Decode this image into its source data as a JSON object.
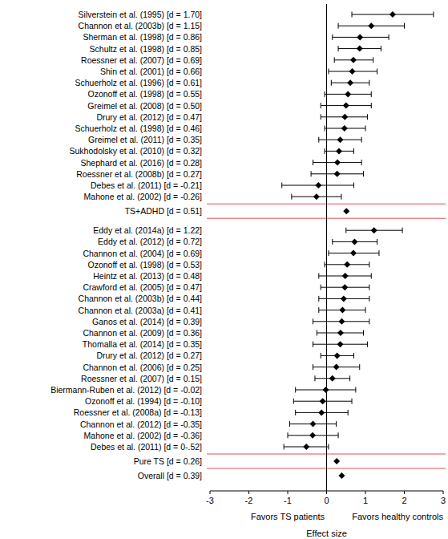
{
  "chart_data": {
    "type": "forest",
    "x_label": "Effect size",
    "annotations": [
      "Favors TS patients",
      "Favors healthy controls"
    ],
    "xlim": [
      -3,
      3
    ],
    "xticks": [
      -3,
      -2,
      -1,
      0,
      1,
      2,
      3
    ],
    "color": "#000000",
    "marker": "diamond",
    "categories": [
      "Silverstein et al. (1995) [d = 1.70]",
      "Channon et al. (2003b) [d = 1.15]",
      "Sherman et al. (1998) [d = 0.86]",
      "Schultz et al. (1998) [d = 0.85]",
      "Roessner et al. (2007) [d = 0.69]",
      "Shin et al. (2001) [d = 0.66]",
      "Schuerholz et al. (1996) [d = 0.61]",
      "Ozonoff et al. (1998) [d = 0.55]",
      "Greimel et al. (2008) [d = 0.50]",
      "Drury et al. (2012) [d = 0.47]",
      "Schuerholz et al. (1998) [d = 0.46]",
      "Greimel et al. (2011) [d = 0.35]",
      "Sukhodolsky et al. (2010) [d = 0.32]",
      "Shephard et al. (2016) [d = 0.28]",
      "Roessner et al. (2008b) [d = 0.27]",
      "Debes et al. (2011) [d = -0.21]",
      "Mahone et al. (2002) [d = -0.26]",
      "TS+ADHD [d = 0.51]",
      "Eddy et al. (2014a) [d = 1.22]",
      "Eddy et al. (2012) [d = 0.72]",
      "Channon et al. (2004) [d = 0.69]",
      "Ozonoff et al. (1998) [d = 0.53]",
      "Heintz et al. (2013) [d = 0.48]",
      "Crawford et al. (2005) [d = 0.47]",
      "Channon et al. (2003b) [d = 0.44]",
      "Channon et al. (2003a) [d = 0.41]",
      "Ganos et al. (2014) [d = 0.39]",
      "Channon et al. (2009) [d = 0.36]",
      "Thomalla et al. (2014) [d = 0.35]",
      "Drury et al. (2012) [d = 0.27]",
      "Channon et al. (2006) [d = 0.25]",
      "Roessner et al. (2007) [d = 0.15]",
      "Biermann-Ruben et al. (2012) [d = -0.02]",
      "Ozonoff et al. (1994) [d = -0.10]",
      "Roessner et al. (2008a) [d = -0.13]",
      "Channon et al. (2012) [d = -0.35]",
      "Mahone et al. (2002) [d = -0.36]",
      "Debes et al. (2011) [d = 0-.52]",
      "Pure TS [d = 0.26]",
      "Overall [d = 0.39]"
    ],
    "values": [
      1.7,
      1.15,
      0.86,
      0.85,
      0.69,
      0.66,
      0.61,
      0.55,
      0.5,
      0.47,
      0.46,
      0.35,
      0.32,
      0.28,
      0.27,
      -0.21,
      -0.26,
      0.51,
      1.22,
      0.72,
      0.69,
      0.53,
      0.48,
      0.47,
      0.44,
      0.41,
      0.39,
      0.36,
      0.35,
      0.27,
      0.25,
      0.15,
      -0.02,
      -0.1,
      -0.13,
      -0.35,
      -0.36,
      -0.52,
      0.26,
      0.39
    ],
    "ci_lower": [
      0.65,
      0.3,
      0.15,
      0.3,
      0.2,
      0.05,
      0.12,
      -0.05,
      -0.15,
      -0.15,
      -0.05,
      -0.2,
      -0.05,
      -0.35,
      -0.4,
      -1.15,
      -0.9,
      null,
      0.5,
      0.15,
      0.05,
      -0.05,
      -0.2,
      -0.15,
      -0.2,
      -0.2,
      -0.35,
      -0.25,
      -0.35,
      -0.15,
      -0.35,
      -0.3,
      -0.8,
      -0.85,
      -0.8,
      -0.95,
      -1.0,
      -1.1,
      null,
      null
    ],
    "ci_upper": [
      2.75,
      2.0,
      1.6,
      1.4,
      1.2,
      1.3,
      1.1,
      1.15,
      1.15,
      1.05,
      1.0,
      0.9,
      0.7,
      0.9,
      0.95,
      0.7,
      0.38,
      null,
      1.95,
      1.3,
      1.35,
      1.1,
      1.15,
      1.1,
      1.1,
      1.0,
      1.1,
      0.95,
      1.05,
      0.7,
      0.85,
      0.6,
      0.75,
      0.65,
      0.55,
      0.25,
      0.3,
      0.05,
      null,
      null
    ]
  }
}
